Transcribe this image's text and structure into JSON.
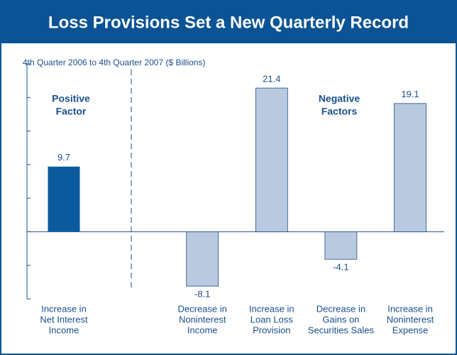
{
  "chart_data": {
    "type": "bar",
    "title": "Loss Provisions Set a New Quarterly Record",
    "subtitle": "4th Quarter 2006 to 4th Quarter 2007 ($ Billions)",
    "annotations": [
      [
        "Positive",
        "Factor"
      ],
      [
        "Negative",
        "Factors"
      ]
    ],
    "categories": [
      [
        "Increase in",
        "Net Interest",
        "Income"
      ],
      [
        "Decrease in",
        "Noninterest",
        "Income"
      ],
      [
        "Increase in",
        "Loan Loss",
        "Provision"
      ],
      [
        "Decrease in",
        "Gains on",
        "Securities Sales"
      ],
      [
        "Increase in",
        "Noninterest",
        "Expense"
      ]
    ],
    "values": [
      9.7,
      -8.1,
      21.4,
      -4.1,
      19.1
    ],
    "colors": [
      "#0b5a9e",
      "#b9c9df",
      "#b9c9df",
      "#b9c9df",
      "#b9c9df"
    ],
    "ylim": [
      -10,
      25
    ],
    "yticks": [
      -10,
      -5,
      0,
      5,
      10,
      15,
      20,
      25
    ]
  }
}
